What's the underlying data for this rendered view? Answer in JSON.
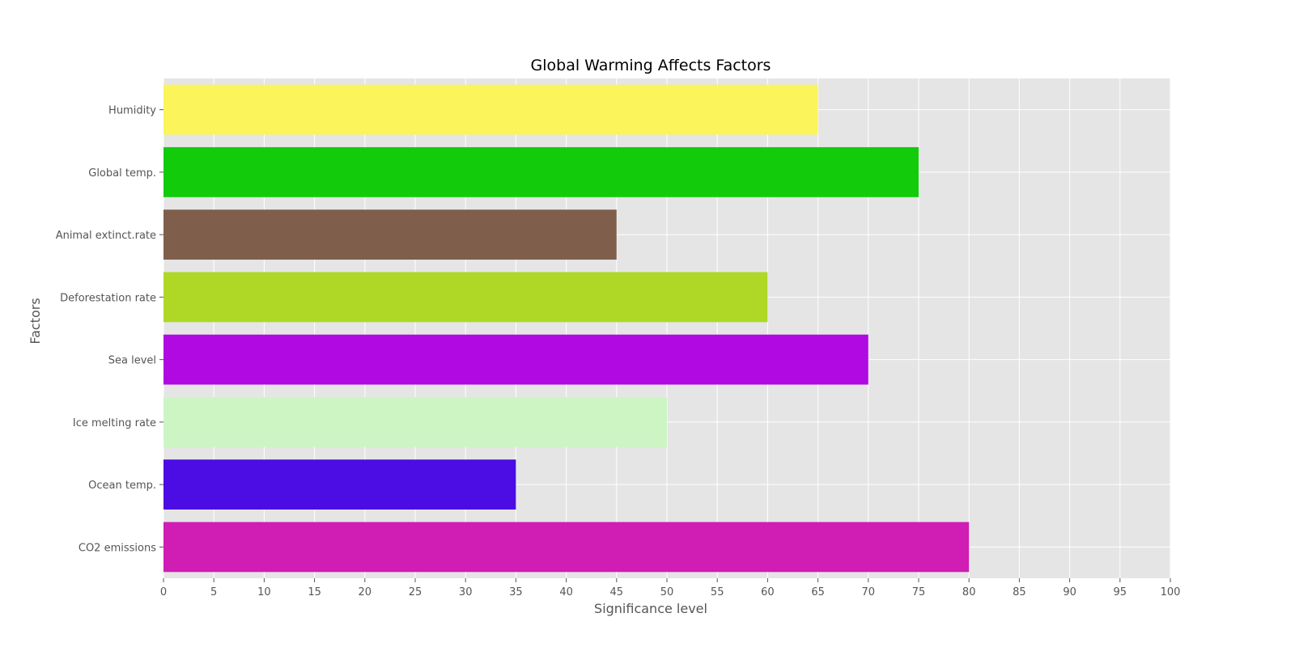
{
  "chart_data": {
    "type": "bar",
    "orientation": "horizontal",
    "title": "Global Warming Affects Factors",
    "xlabel": "Significance level",
    "ylabel": "Factors",
    "xlim": [
      0,
      100
    ],
    "xticks": [
      0,
      5,
      10,
      15,
      20,
      25,
      30,
      35,
      40,
      45,
      50,
      55,
      60,
      65,
      70,
      75,
      80,
      85,
      90,
      95,
      100
    ],
    "grid": true,
    "legend": "none",
    "categories": [
      "CO2 emissions",
      "Ocean temp.",
      "Ice melting rate",
      "Sea level",
      "Deforestation rate",
      "Animal extinct.rate",
      "Global temp.",
      "Humidity"
    ],
    "values": [
      80,
      35,
      50,
      70,
      60,
      45,
      75,
      65
    ],
    "colors": [
      "#d01db4",
      "#4c0ce4",
      "#cdf5c4",
      "#b009e2",
      "#aed825",
      "#7f5f4b",
      "#12cc0c",
      "#fbf45a"
    ],
    "background_color": "#e5e5e5",
    "grid_color": "#ffffff"
  }
}
